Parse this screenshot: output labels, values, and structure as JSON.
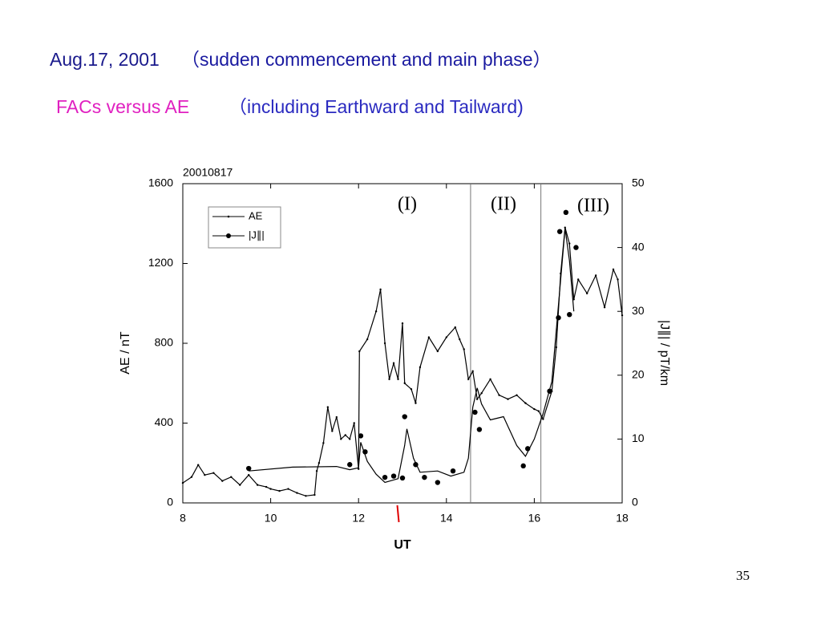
{
  "header": {
    "date": "Aug.17, 2001",
    "title": "（sudden commencement and main phase）",
    "subtitle_lead": "FACs versus AE",
    "subtitle_rest": "（including Earthward and Tailward)"
  },
  "page_number": "35",
  "chart_data": {
    "type": "line",
    "label": "20010817",
    "x_label": "UT",
    "y_label": "AE / nT",
    "y2_label": "|J∥| / pT/km",
    "annotations": [
      "(I)",
      "(II)",
      "(III)"
    ],
    "phase_boundaries": [
      14.55,
      16.15
    ],
    "event_time": 12.9,
    "xlim": [
      8,
      18
    ],
    "xticks": [
      8,
      10,
      12,
      14,
      16,
      18
    ],
    "ylim": [
      0,
      1600
    ],
    "yticks": [
      0,
      400,
      800,
      1200,
      1600
    ],
    "y2lim": [
      0,
      50
    ],
    "y2ticks": [
      0,
      10,
      20,
      30,
      40,
      50
    ],
    "legend": "upper left",
    "series": [
      {
        "name": "AE",
        "color": "#000000",
        "x": [
          8.0,
          8.2,
          8.35,
          8.5,
          8.7,
          8.9,
          9.1,
          9.3,
          9.5,
          9.7,
          9.9,
          10.0,
          10.2,
          10.4,
          10.6,
          10.8,
          11.0,
          11.05,
          11.1,
          11.2,
          11.3,
          11.4,
          11.5,
          11.6,
          11.7,
          11.8,
          11.9,
          12.0,
          12.02,
          12.2,
          12.4,
          12.5,
          12.6,
          12.7,
          12.8,
          12.9,
          13.0,
          13.05,
          13.2,
          13.3,
          13.4,
          13.6,
          13.8,
          14.0,
          14.2,
          14.3,
          14.4,
          14.5,
          14.6,
          14.7,
          14.8,
          15.0,
          15.2,
          15.4,
          15.6,
          15.8,
          16.0,
          16.1,
          16.2,
          16.4,
          16.5,
          16.6,
          16.7,
          16.8,
          16.9,
          17.0,
          17.2,
          17.4,
          17.6,
          17.8,
          17.9,
          18.0
        ],
        "values": [
          100,
          130,
          190,
          140,
          150,
          110,
          130,
          90,
          140,
          90,
          80,
          70,
          60,
          70,
          50,
          35,
          40,
          160,
          200,
          300,
          480,
          360,
          430,
          320,
          340,
          320,
          400,
          170,
          760,
          820,
          960,
          1070,
          800,
          620,
          700,
          620,
          900,
          600,
          570,
          500,
          680,
          830,
          760,
          830,
          880,
          820,
          770,
          620,
          660,
          520,
          550,
          620,
          540,
          520,
          540,
          500,
          470,
          460,
          420,
          560,
          780,
          1150,
          1380,
          1300,
          1020,
          1120,
          1050,
          1140,
          980,
          1170,
          1120,
          940
        ]
      },
      {
        "name": "|J∥|",
        "color": "#000000",
        "axis": "y2",
        "x": [
          9.5,
          10.5,
          11.5,
          11.8,
          12.0,
          12.05,
          12.2,
          12.4,
          12.6,
          12.9,
          13.05,
          13.1,
          13.25,
          13.4,
          13.8,
          14.1,
          14.4,
          14.5,
          14.6,
          14.7,
          14.8,
          15.0,
          15.3,
          15.6,
          15.8,
          16.0,
          16.2,
          16.4,
          16.6,
          16.7,
          16.8,
          16.9
        ],
        "values": [
          5.0,
          5.6,
          5.7,
          5.2,
          5.5,
          9.5,
          6.5,
          4.5,
          3.2,
          3.8,
          9.0,
          11.6,
          7.0,
          4.8,
          5.0,
          4.2,
          4.8,
          7.0,
          15.0,
          18.0,
          15.5,
          13.0,
          13.5,
          9.0,
          7.3,
          10.0,
          14.0,
          19.0,
          35.0,
          43.0,
          38.0,
          30.0
        ],
        "points": {
          "x": [
            9.5,
            11.8,
            12.05,
            12.15,
            12.6,
            12.8,
            13.0,
            13.05,
            13.3,
            13.5,
            13.8,
            14.15,
            14.65,
            14.75,
            15.75,
            15.85,
            16.35,
            16.55,
            16.58,
            16.72,
            16.8,
            16.95
          ],
          "values": [
            5.4,
            6.0,
            10.5,
            8.0,
            4.0,
            4.2,
            3.9,
            13.5,
            6.0,
            4.0,
            3.2,
            5.0,
            14.2,
            11.5,
            5.8,
            8.5,
            17.5,
            29.0,
            42.5,
            45.5,
            29.5,
            40.0
          ]
        }
      }
    ]
  }
}
